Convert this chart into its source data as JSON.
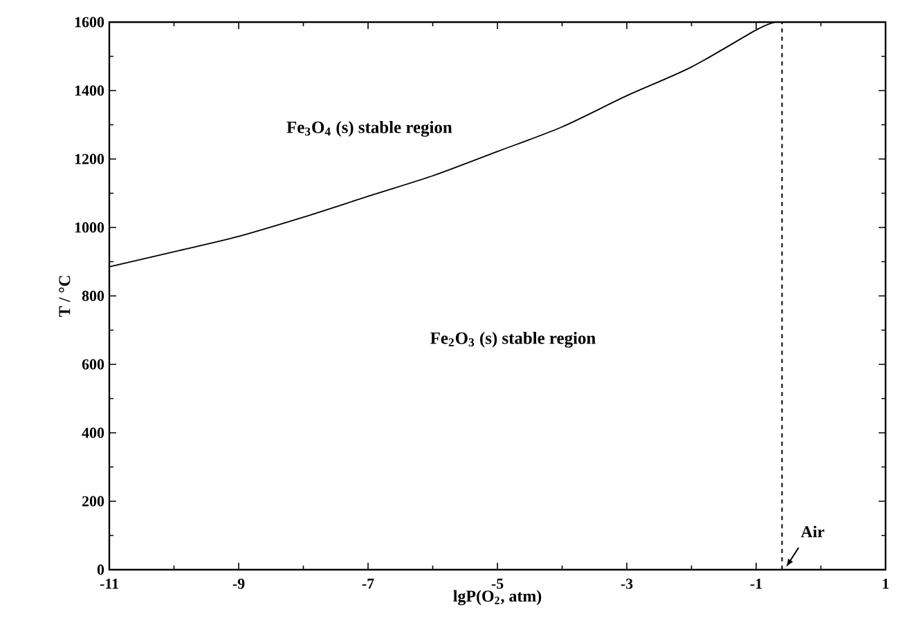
{
  "chart_data": {
    "type": "line",
    "xlabel": "lgP(O$_{2}$, atm)",
    "ylabel": "T / °C",
    "x": [
      -11,
      -10,
      -9,
      -8,
      -7,
      -6,
      -5,
      -4,
      -3,
      -2,
      -1,
      -0.7
    ],
    "series": [
      {
        "color": "#000000",
        "values": [
          885,
          929,
          974,
          1030,
          1091,
          1151,
          1222,
          1294,
          1385,
          1469,
          1577,
          1600
        ]
      }
    ],
    "xlim": [
      -11,
      1
    ],
    "xticks": [
      -11,
      -9,
      -7,
      -5,
      -3,
      -1,
      1
    ],
    "ylim": [
      0,
      1600
    ],
    "yticks": [
      0,
      200,
      400,
      600,
      800,
      1000,
      1200,
      1400,
      1600
    ],
    "ref_lines": [
      {
        "axis": "x",
        "value": -0.6,
        "label": "Air",
        "line_style": "dashed",
        "color": "#000000"
      }
    ],
    "annotations": [
      "Fe$_{3}$O$_{4}$ (s) stable region",
      "Fe$_{2}$O$_{3}$ (s) stable region"
    ],
    "marker": "none",
    "line_style": "solid"
  }
}
